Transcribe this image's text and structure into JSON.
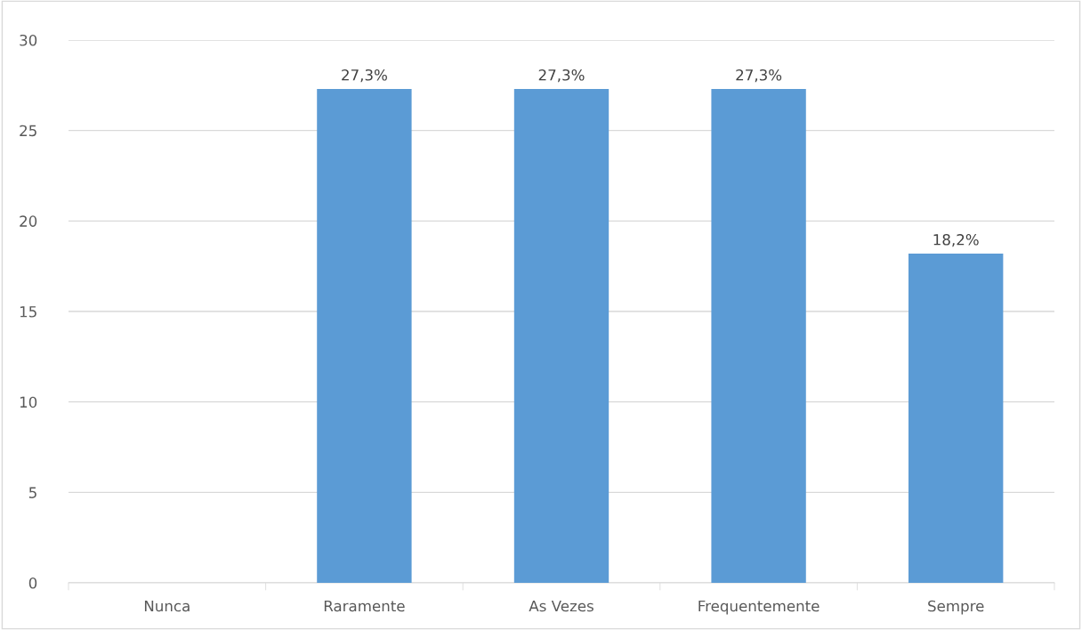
{
  "chart_data": {
    "type": "bar",
    "categories": [
      "Nunca",
      "Raramente",
      "As Vezes",
      "Frequentemente",
      "Sempre"
    ],
    "values": [
      0,
      27.3,
      27.3,
      27.3,
      18.2
    ],
    "value_labels": [
      null,
      "27,3%",
      "27,3%",
      "27,3%",
      "18,2%"
    ],
    "color": "#5b9bd5",
    "ylim": [
      0,
      30
    ],
    "yticks": [
      0,
      5,
      10,
      15,
      20,
      25,
      30
    ],
    "grid": "y"
  }
}
